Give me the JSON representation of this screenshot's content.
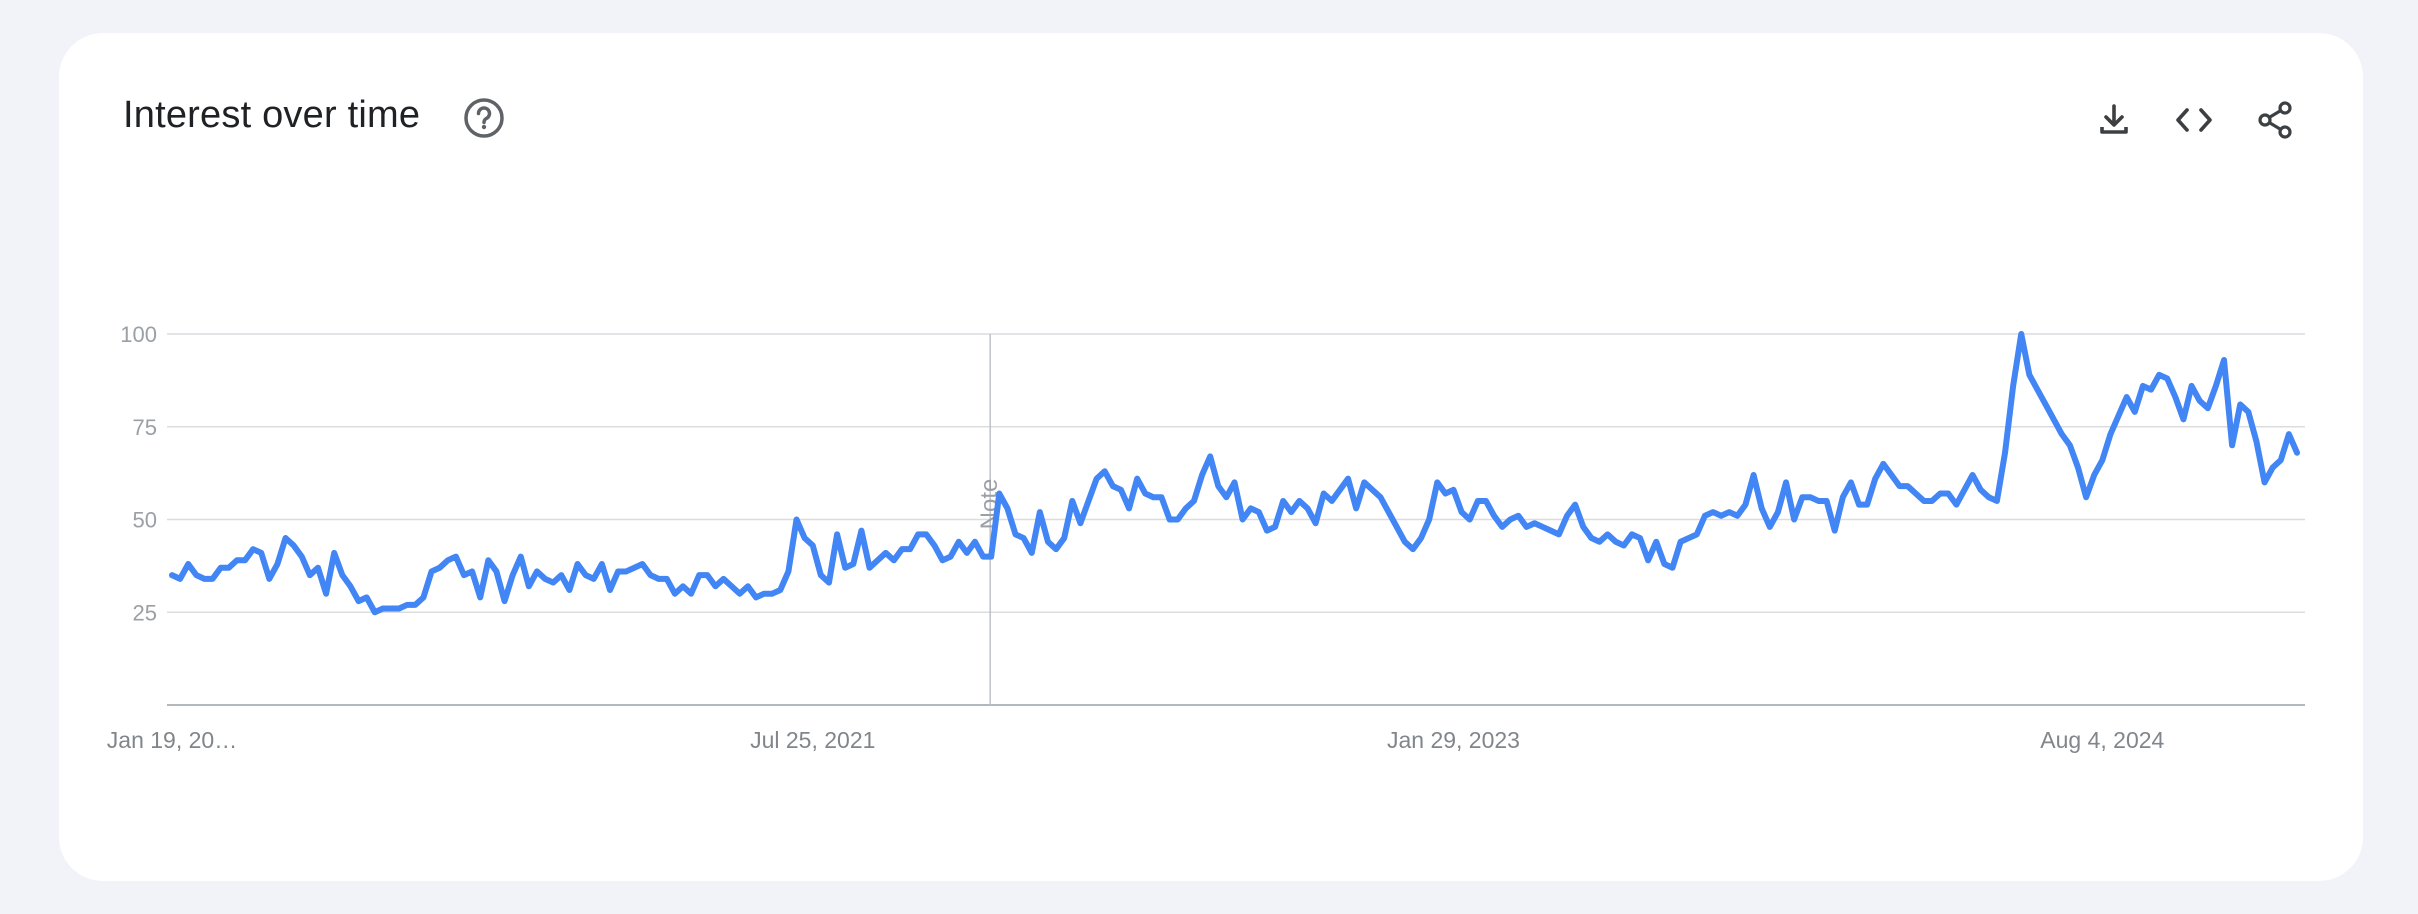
{
  "header": {
    "title": "Interest over time",
    "help_icon": "help-circle-icon",
    "actions": [
      {
        "name": "download-icon"
      },
      {
        "name": "embed-code-icon"
      },
      {
        "name": "share-icon"
      }
    ]
  },
  "chart_data": {
    "type": "line",
    "title": "Interest over time",
    "xlabel": "",
    "ylabel": "",
    "ylim": [
      0,
      100
    ],
    "grid": true,
    "yticks": [
      "100",
      "75",
      "50",
      "25"
    ],
    "ytick_values": [
      100,
      75,
      50,
      25
    ],
    "xticks": [
      "Jan 19, 20…",
      "Jul 25, 2021",
      "Jan 29, 2023",
      "Aug 4, 2024"
    ],
    "xtick_index": [
      0,
      79,
      158,
      238
    ],
    "note_label": "Note",
    "note_index": 101,
    "line_color": "#4285f4",
    "series": [
      {
        "name": "",
        "values": [
          35,
          34,
          38,
          35,
          34,
          34,
          37,
          37,
          39,
          39,
          42,
          41,
          34,
          38,
          45,
          43,
          40,
          35,
          37,
          30,
          41,
          35,
          32,
          28,
          29,
          25,
          26,
          26,
          26,
          27,
          27,
          29,
          36,
          37,
          39,
          40,
          35,
          36,
          29,
          39,
          36,
          28,
          35,
          40,
          32,
          36,
          34,
          33,
          35,
          31,
          38,
          35,
          34,
          38,
          31,
          36,
          36,
          37,
          38,
          35,
          34,
          34,
          30,
          32,
          30,
          35,
          35,
          32,
          34,
          32,
          30,
          32,
          29,
          30,
          30,
          31,
          36,
          50,
          45,
          43,
          35,
          33,
          46,
          37,
          38,
          47,
          37,
          39,
          41,
          39,
          42,
          42,
          46,
          46,
          43,
          39,
          40,
          44,
          41,
          44,
          40,
          40,
          57,
          53,
          46,
          45,
          41,
          52,
          44,
          42,
          45,
          55,
          49,
          55,
          61,
          63,
          59,
          58,
          53,
          61,
          57,
          56,
          56,
          50,
          50,
          53,
          55,
          62,
          67,
          59,
          56,
          60,
          50,
          53,
          52,
          47,
          48,
          55,
          52,
          55,
          53,
          49,
          57,
          55,
          58,
          61,
          53,
          60,
          58,
          56,
          52,
          48,
          44,
          42,
          45,
          50,
          60,
          57,
          58,
          52,
          50,
          55,
          55,
          51,
          48,
          50,
          51,
          48,
          49,
          48,
          47,
          46,
          51,
          54,
          48,
          45,
          44,
          46,
          44,
          43,
          46,
          45,
          39,
          44,
          38,
          37,
          44,
          45,
          46,
          51,
          52,
          51,
          52,
          51,
          54,
          62,
          53,
          48,
          52,
          60,
          50,
          56,
          56,
          55,
          55,
          47,
          56,
          60,
          54,
          54,
          61,
          65,
          62,
          59,
          59,
          57,
          55,
          55,
          57,
          57,
          54,
          58,
          62,
          58,
          56,
          55,
          68,
          86,
          100,
          89,
          85,
          81,
          77,
          73,
          70,
          64,
          56,
          62,
          66,
          73,
          78,
          83,
          79,
          86,
          85,
          89,
          88,
          83,
          77,
          86,
          82,
          80,
          86,
          93,
          70,
          81,
          79,
          71,
          60,
          64,
          66,
          73,
          68
        ]
      }
    ]
  }
}
